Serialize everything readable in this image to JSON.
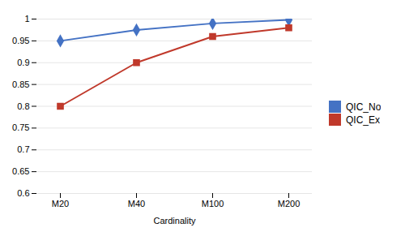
{
  "chart_data": {
    "type": "line",
    "categories": [
      "M20",
      "M40",
      "M100",
      "M200"
    ],
    "series": [
      {
        "name": "QIC_No",
        "color": "#4472C4",
        "marker": "diamond",
        "values": [
          0.95,
          0.975,
          0.99,
          0.998
        ]
      },
      {
        "name": "QIC_Ex",
        "color": "#C0392B",
        "marker": "square",
        "values": [
          0.8,
          0.9,
          0.96,
          0.98
        ]
      }
    ],
    "xlabel": "Cardinality",
    "ylim": [
      0.6,
      1.0
    ],
    "yticks": [
      0.6,
      0.65,
      0.7,
      0.75,
      0.8,
      0.85,
      0.9,
      0.95,
      1.0
    ],
    "grid": true,
    "legend": "right"
  }
}
